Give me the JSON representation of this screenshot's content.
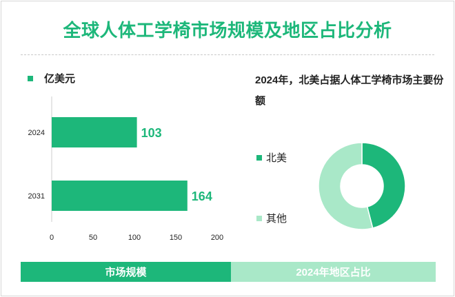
{
  "title": "全球人体工学椅市场规模及地区占比分析",
  "colors": {
    "primary": "#1db77a",
    "light": "#a9e8c8"
  },
  "footer": {
    "left_label": "市场规模",
    "right_label": "2024年地区占比"
  },
  "chart_data": [
    {
      "type": "bar",
      "orientation": "horizontal",
      "legend": "亿美元",
      "categories": [
        "2024",
        "2031"
      ],
      "values": [
        103,
        164
      ],
      "xlim": [
        0,
        200
      ],
      "xticks": [
        0,
        50,
        100,
        150,
        200
      ],
      "data_labels": [
        "103",
        "164"
      ],
      "grid": false
    },
    {
      "type": "pie",
      "donut": true,
      "title": "2024年，北美占据人体工学椅市场主要份额",
      "labels": [
        "北美",
        "其他"
      ],
      "values": [
        46,
        54
      ],
      "colors": [
        "#1db77a",
        "#a9e8c8"
      ]
    }
  ]
}
